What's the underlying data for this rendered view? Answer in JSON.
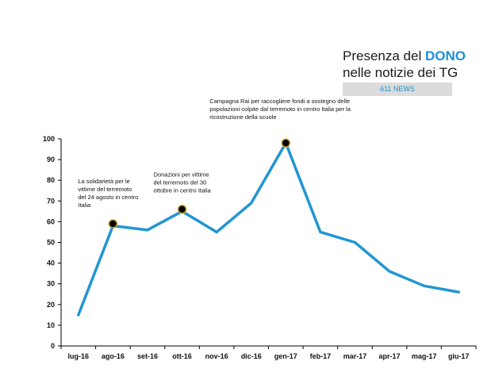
{
  "header": {
    "title_prefix": "Presenza del ",
    "title_accent": "DONO",
    "title_line2": "nelle notizie dei TG",
    "badge": "611 NEWS"
  },
  "colors": {
    "line": "#2196d3",
    "accent": "#1e8fd4",
    "marker": "#000000",
    "marker_ring": "#c9a227"
  },
  "chart_data": {
    "type": "line",
    "categories": [
      "lug-16",
      "ago-16",
      "set-16",
      "ott-16",
      "nov-16",
      "dic-16",
      "gen-17",
      "feb-17",
      "mar-17",
      "apr-17",
      "mag-17",
      "giu-17"
    ],
    "series": [
      {
        "values": [
          15,
          58,
          56,
          65,
          55,
          69,
          98,
          55,
          50,
          36,
          29,
          26
        ]
      }
    ],
    "ylim": [
      0,
      100
    ],
    "yticks": [
      0,
      10,
      20,
      30,
      40,
      50,
      60,
      70,
      80,
      90,
      100
    ],
    "grid": false,
    "annotations": [
      {
        "category": "ago-16",
        "value": 59,
        "lines": [
          "La solidarietà per le",
          "vittime del terremoto",
          "del 24 agosto in centro",
          "Italia"
        ]
      },
      {
        "category": "ott-16",
        "value": 66,
        "lines": [
          "Donazioni per vittime",
          "del terremoto del 30",
          "ottobre in centro Italia"
        ]
      },
      {
        "category": "gen-17",
        "value": 98,
        "lines": [
          "Campagna Rai per raccogliere fondi a sostegno delle",
          "popolazioni colpite dal terremoto in centro Italia per la",
          "ricostruzione della scuole"
        ]
      }
    ]
  }
}
